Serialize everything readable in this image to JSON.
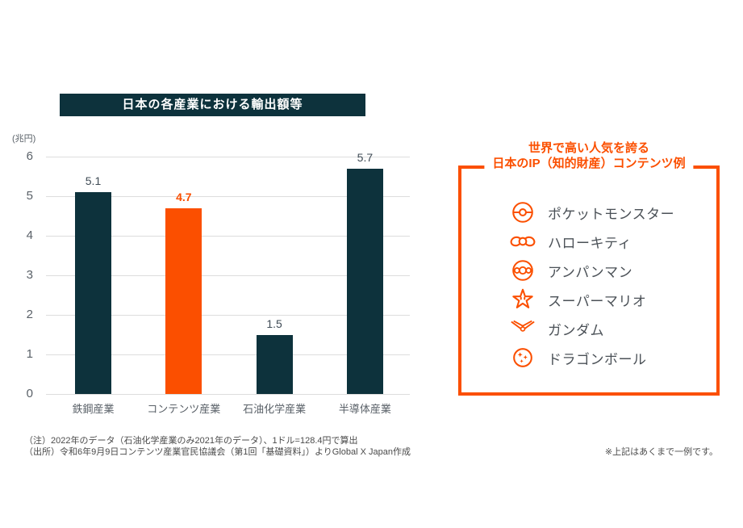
{
  "chart_data": {
    "type": "bar",
    "title": "日本の各産業における輸出額等",
    "ylabel": "(兆円)",
    "categories": [
      "鉄鋼産業",
      "コンテンツ産業",
      "石油化学産業",
      "半導体産業"
    ],
    "values": [
      5.1,
      4.7,
      1.5,
      5.7
    ],
    "value_labels": [
      "5.1",
      "4.7",
      "1.5",
      "5.7"
    ],
    "highlight_index": 1,
    "ylim": [
      0,
      6
    ],
    "ytick_step": 1,
    "grid": true,
    "bar_color": "#0d323c",
    "highlight_color": "#fb4f00",
    "value_label_color": "#3f4b55",
    "highlight_label_color": "#fb4f00"
  },
  "ip_panel": {
    "title_line1": "世界で高い人気を誇る",
    "title_line2": "日本のIP（知的財産）コンテンツ例",
    "accent_color": "#fb4f00",
    "items": [
      {
        "icon": "pokeball-icon",
        "label": "ポケットモンスター"
      },
      {
        "icon": "kitty-bow-icon",
        "label": "ハローキティ"
      },
      {
        "icon": "anpanman-icon",
        "label": "アンパンマン"
      },
      {
        "icon": "mario-star-icon",
        "label": "スーパーマリオ"
      },
      {
        "icon": "gundam-vfin-icon",
        "label": "ガンダム"
      },
      {
        "icon": "dragonball-icon",
        "label": "ドラゴンボール"
      }
    ],
    "side_note": "※上記はあくまで一例です。"
  },
  "footnotes": {
    "note": "（注）2022年のデータ（石油化学産業のみ2021年のデータ）、1ドル=128.4円で算出",
    "source": "（出所）令和6年9月9日コンテンツ産業官民協議会（第1回「基礎資料」）よりGlobal X Japan作成"
  }
}
